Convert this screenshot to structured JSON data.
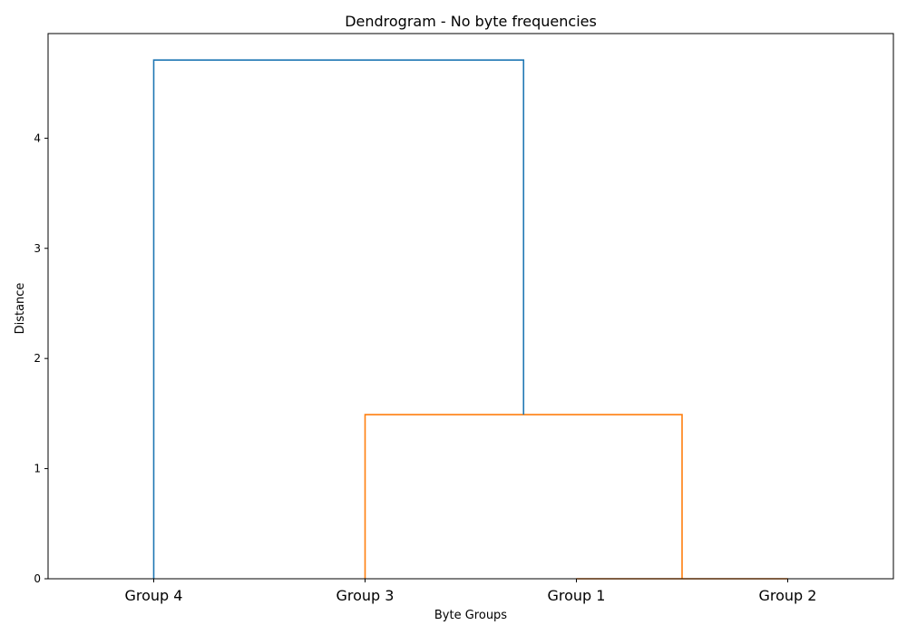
{
  "chart_data": {
    "type": "dendrogram",
    "title": "Dendrogram - No byte frequencies",
    "xlabel": "Byte Groups",
    "ylabel": "Distance",
    "leaves": [
      "Group 4",
      "Group 3",
      "Group 1",
      "Group 2"
    ],
    "ylim": [
      0,
      4.95
    ],
    "yticks": [
      0,
      1,
      2,
      3,
      4
    ],
    "merges": [
      {
        "left": "Group 1",
        "right": "Group 2",
        "height": 0.0,
        "color": "#ff7f0e"
      },
      {
        "left": "Group 3",
        "right": "Group 1 + Group 2",
        "height": 1.49,
        "color": "#ff7f0e"
      },
      {
        "left": "Group 4",
        "right": "Group 3 + Group 1 + Group 2",
        "height": 4.71,
        "color": "#1f77b4"
      }
    ],
    "colors": {
      "orange_cluster": "#ff7f0e",
      "root_link": "#1f77b4",
      "axis": "#000000"
    }
  }
}
